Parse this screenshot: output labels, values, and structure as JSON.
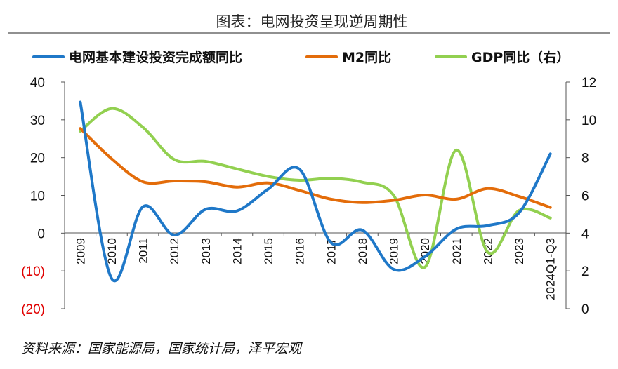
{
  "title": "图表：电网投资呈现逆周期性",
  "source": "资料来源：国家能源局，国家统计局，泽平宏观",
  "colors": {
    "grid_investment": "#1f78c8",
    "m2": "#e36c0a",
    "gdp": "#92d050",
    "negative_tick": "#e00000"
  },
  "chart_data": {
    "type": "line",
    "categories": [
      "2009",
      "2010",
      "2011",
      "2012",
      "2013",
      "2014",
      "2015",
      "2016",
      "2017",
      "2018",
      "2019",
      "2020",
      "2021",
      "2022",
      "2023",
      "2024Q1-Q3"
    ],
    "left_axis": {
      "ylim": [
        -20,
        40
      ],
      "ticks": [
        40,
        30,
        20,
        10,
        0,
        -10,
        -20
      ],
      "tick_labels": [
        "40",
        "30",
        "20",
        "10",
        "0",
        "(10)",
        "(20)"
      ]
    },
    "right_axis": {
      "ylim": [
        0,
        12
      ],
      "ticks": [
        12,
        10,
        8,
        6,
        4,
        2,
        0
      ],
      "tick_labels": [
        "12",
        "10",
        "8",
        "6",
        "4",
        "2",
        "0"
      ]
    },
    "legend_position": "top",
    "series": [
      {
        "name": "电网基本建设投资完成额同比",
        "axis": "left",
        "color": "#1f78c8",
        "values": [
          34.7,
          -12.0,
          7.0,
          -0.5,
          6.3,
          5.9,
          11.7,
          16.9,
          -2.5,
          0.8,
          -9.6,
          -6.2,
          1.1,
          2.0,
          5.4,
          21.0
        ]
      },
      {
        "name": "M2同比",
        "axis": "left",
        "color": "#e36c0a",
        "values": [
          27.7,
          19.7,
          13.6,
          13.8,
          13.6,
          12.2,
          13.3,
          11.3,
          9.0,
          8.1,
          8.7,
          10.1,
          9.0,
          11.8,
          9.7,
          6.8
        ]
      },
      {
        "name": "GDP同比（右）",
        "axis": "right",
        "color": "#92d050",
        "values": [
          9.4,
          10.6,
          9.6,
          7.9,
          7.8,
          7.4,
          7.0,
          6.8,
          6.9,
          6.7,
          6.0,
          2.2,
          8.4,
          3.0,
          5.2,
          4.8
        ]
      }
    ]
  }
}
